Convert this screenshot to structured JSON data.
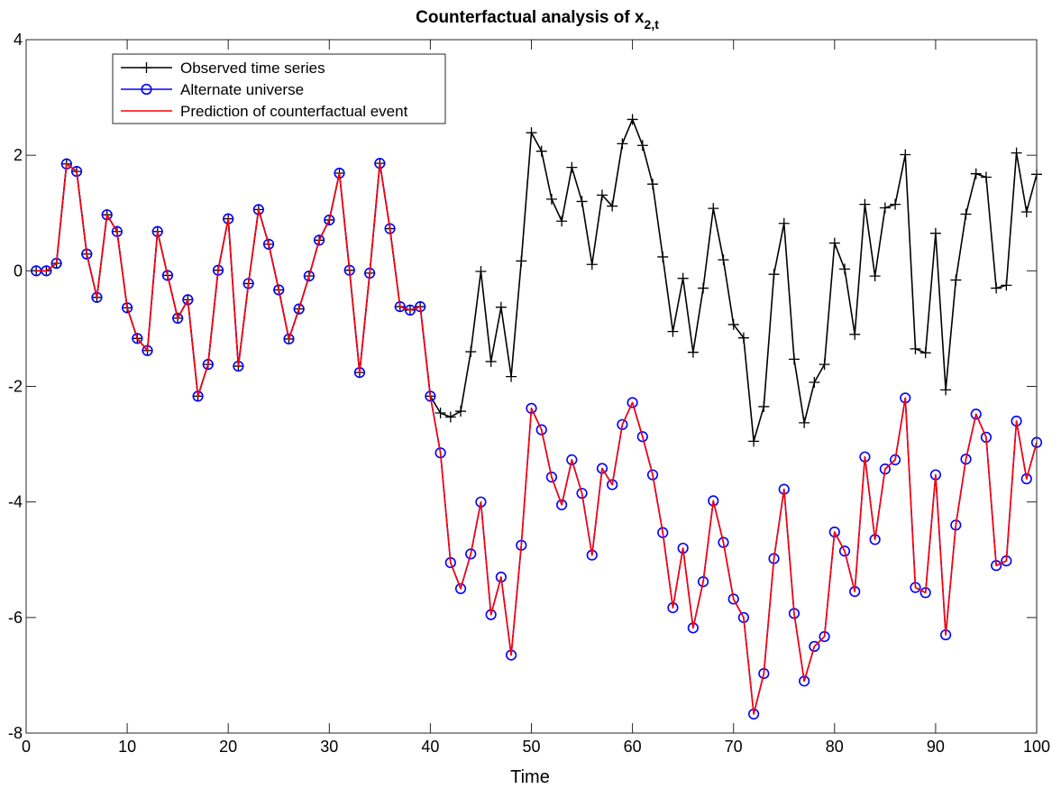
{
  "chart_data": {
    "type": "line",
    "title": "Counterfactual analysis of x",
    "title_subscript": "2,t",
    "xlabel": "Time",
    "ylabel": "",
    "xlim": [
      0,
      100
    ],
    "ylim": [
      -8,
      4
    ],
    "xticks": [
      0,
      10,
      20,
      30,
      40,
      50,
      60,
      70,
      80,
      90,
      100
    ],
    "yticks": [
      -8,
      -6,
      -4,
      -2,
      0,
      2,
      4
    ],
    "xtick_labels": [
      "0",
      "10",
      "20",
      "30",
      "40",
      "50",
      "60",
      "70",
      "80",
      "90",
      "100"
    ],
    "ytick_labels": [
      "-8",
      "-6",
      "-4",
      "-2",
      "0",
      "2",
      "4"
    ],
    "grid": false,
    "legend_position": "top-left",
    "x": [
      1,
      2,
      3,
      4,
      5,
      6,
      7,
      8,
      9,
      10,
      11,
      12,
      13,
      14,
      15,
      16,
      17,
      18,
      19,
      20,
      21,
      22,
      23,
      24,
      25,
      26,
      27,
      28,
      29,
      30,
      31,
      32,
      33,
      34,
      35,
      36,
      37,
      38,
      39,
      40,
      41,
      42,
      43,
      44,
      45,
      46,
      47,
      48,
      49,
      50,
      51,
      52,
      53,
      54,
      55,
      56,
      57,
      58,
      59,
      60,
      61,
      62,
      63,
      64,
      65,
      66,
      67,
      68,
      69,
      70,
      71,
      72,
      73,
      74,
      75,
      76,
      77,
      78,
      79,
      80,
      81,
      82,
      83,
      84,
      85,
      86,
      87,
      88,
      89,
      90,
      91,
      92,
      93,
      94,
      95,
      96,
      97,
      98,
      99,
      100
    ],
    "series": [
      {
        "name": "Observed time series",
        "color": "#000000",
        "marker": "plus",
        "values": [
          0,
          0,
          0.13,
          1.85,
          1.72,
          0.29,
          -0.46,
          0.97,
          0.68,
          -0.64,
          -1.17,
          -1.38,
          0.68,
          -0.08,
          -0.82,
          -0.5,
          -2.17,
          -1.62,
          0.01,
          0.9,
          -1.65,
          -0.22,
          1.06,
          0.46,
          -0.33,
          -1.18,
          -0.66,
          -0.09,
          0.53,
          0.88,
          1.69,
          0.01,
          -1.76,
          -0.04,
          1.86,
          0.73,
          -0.62,
          -0.68,
          -0.62,
          -2.17,
          -2.46,
          -2.53,
          -2.43,
          -1.4,
          -0.01,
          -1.57,
          -0.63,
          -1.83,
          0.17,
          2.39,
          2.07,
          1.24,
          0.86,
          1.79,
          1.2,
          0.11,
          1.31,
          1.12,
          2.2,
          2.62,
          2.17,
          1.5,
          0.24,
          -1.05,
          -0.13,
          -1.41,
          -0.3,
          1.08,
          0.19,
          -0.93,
          -1.16,
          -2.95,
          -2.35,
          -0.06,
          0.82,
          -1.53,
          -2.63,
          -1.93,
          -1.62,
          0.48,
          0.03,
          -1.1,
          1.15,
          -0.09,
          1.09,
          1.15,
          2.01,
          -1.35,
          -1.42,
          0.65,
          -2.06,
          -0.16,
          0.98,
          1.68,
          1.62,
          -0.3,
          -0.25,
          2.04,
          1.02,
          1.67
        ]
      },
      {
        "name": "Alternate universe",
        "color": "#0000ff",
        "marker": "circle",
        "values": [
          0,
          0,
          0.13,
          1.85,
          1.72,
          0.29,
          -0.46,
          0.97,
          0.68,
          -0.64,
          -1.17,
          -1.38,
          0.68,
          -0.08,
          -0.82,
          -0.5,
          -2.17,
          -1.62,
          0.01,
          0.9,
          -1.65,
          -0.22,
          1.06,
          0.46,
          -0.33,
          -1.18,
          -0.66,
          -0.09,
          0.53,
          0.88,
          1.69,
          0.01,
          -1.76,
          -0.04,
          1.86,
          0.73,
          -0.62,
          -0.68,
          -0.62,
          -2.17,
          -3.15,
          -5.05,
          -5.5,
          -4.9,
          -4.0,
          -5.95,
          -5.3,
          -6.65,
          -4.75,
          -2.38,
          -2.75,
          -3.57,
          -4.05,
          -3.27,
          -3.85,
          -4.92,
          -3.42,
          -3.7,
          -2.66,
          -2.28,
          -2.87,
          -3.53,
          -4.53,
          -5.83,
          -4.8,
          -6.18,
          -5.38,
          -3.98,
          -4.7,
          -5.68,
          -6.0,
          -7.67,
          -6.97,
          -4.98,
          -3.78,
          -5.93,
          -7.1,
          -6.5,
          -6.33,
          -4.52,
          -4.85,
          -5.55,
          -3.22,
          -4.65,
          -3.43,
          -3.27,
          -2.2,
          -5.48,
          -5.57,
          -3.53,
          -6.3,
          -4.4,
          -3.26,
          -2.48,
          -2.88,
          -5.1,
          -5.02,
          -2.6,
          -3.6,
          -2.97
        ]
      },
      {
        "name": "Prediction of counterfactual event",
        "color": "#ff0000",
        "marker": "none",
        "values": [
          0,
          0,
          0.13,
          1.85,
          1.72,
          0.29,
          -0.46,
          0.97,
          0.68,
          -0.64,
          -1.17,
          -1.38,
          0.68,
          -0.08,
          -0.82,
          -0.5,
          -2.17,
          -1.62,
          0.01,
          0.9,
          -1.65,
          -0.22,
          1.06,
          0.46,
          -0.33,
          -1.18,
          -0.66,
          -0.09,
          0.53,
          0.88,
          1.69,
          0.01,
          -1.76,
          -0.04,
          1.86,
          0.73,
          -0.62,
          -0.68,
          -0.62,
          -2.17,
          -3.15,
          -5.05,
          -5.5,
          -4.9,
          -4.0,
          -5.95,
          -5.3,
          -6.65,
          -4.75,
          -2.38,
          -2.75,
          -3.57,
          -4.05,
          -3.27,
          -3.85,
          -4.92,
          -3.42,
          -3.7,
          -2.66,
          -2.28,
          -2.87,
          -3.53,
          -4.53,
          -5.83,
          -4.8,
          -6.18,
          -5.38,
          -3.98,
          -4.7,
          -5.68,
          -6.0,
          -7.67,
          -6.97,
          -4.98,
          -3.78,
          -5.93,
          -7.1,
          -6.5,
          -6.33,
          -4.52,
          -4.85,
          -5.55,
          -3.22,
          -4.65,
          -3.43,
          -3.27,
          -2.2,
          -5.48,
          -5.57,
          -3.53,
          -6.3,
          -4.4,
          -3.26,
          -2.48,
          -2.88,
          -5.1,
          -5.02,
          -2.6,
          -3.6,
          -2.97
        ]
      }
    ]
  }
}
